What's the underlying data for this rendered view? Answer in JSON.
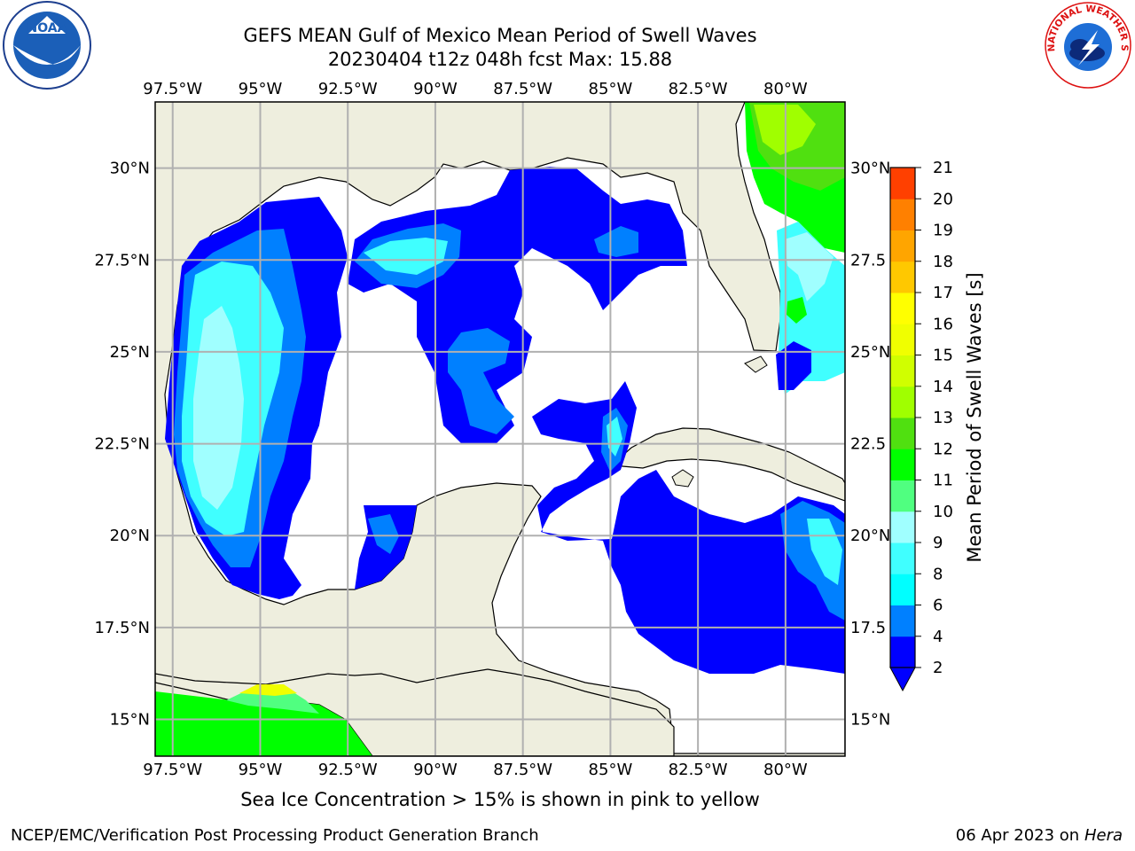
{
  "header": {
    "title_line1": "GEFS MEAN Gulf of Mexico Mean Period of Swell Waves",
    "title_line2": "20230404 t12z 048h fcst   Max: 15.88"
  },
  "logos": {
    "left": "NOAA",
    "right": "NATIONAL WEATHER SERVICE"
  },
  "map": {
    "lon_labels": [
      "97.5°W",
      "95°W",
      "92.5°W",
      "90°W",
      "87.5°W",
      "85°W",
      "82.5°W",
      "80°W"
    ],
    "lon_values": [
      -97.5,
      -95,
      -92.5,
      -90,
      -87.5,
      -85,
      -82.5,
      -80
    ],
    "lat_labels_left": [
      "30°N",
      "27.5°N",
      "25°N",
      "22.5°N",
      "20°N",
      "17.5°N",
      "15°N"
    ],
    "lat_labels_right": [
      "30°N",
      "27.5",
      "25°N",
      "22.5",
      "20°N",
      "17.5",
      "15°N"
    ],
    "lat_values": [
      30,
      27.5,
      25,
      22.5,
      20,
      17.5,
      15
    ],
    "extent": {
      "lon_min": -98,
      "lon_max": -78.3,
      "lat_min": 14,
      "lat_max": 31.8
    },
    "colors": {
      "land": "#eeeede",
      "grid": "#b0b0b0",
      "coast": "#000000"
    }
  },
  "colorbar": {
    "label": "Mean Period of Swell Waves [s]",
    "ticks": [
      "2",
      "4",
      "6",
      "8",
      "9",
      "10",
      "11",
      "12",
      "13",
      "14",
      "15",
      "16",
      "17",
      "18",
      "19",
      "20",
      "21"
    ],
    "colors": [
      "#0000ff",
      "#0080ff",
      "#00ffff",
      "#40ffff",
      "#a0ffff",
      "#50ff80",
      "#00ff00",
      "#50e010",
      "#a0ff00",
      "#d0ff00",
      "#f0ff00",
      "#ffff00",
      "#ffc800",
      "#ffa500",
      "#ff8000",
      "#ff4000",
      "#ff0000"
    ]
  },
  "footer": {
    "note": "Sea Ice Concentration > 15% is shown in pink to yellow",
    "left": "NCEP/EMC/Verification Post Processing Product Generation Branch",
    "date": "06 Apr 2023 on ",
    "host": "Hera"
  }
}
